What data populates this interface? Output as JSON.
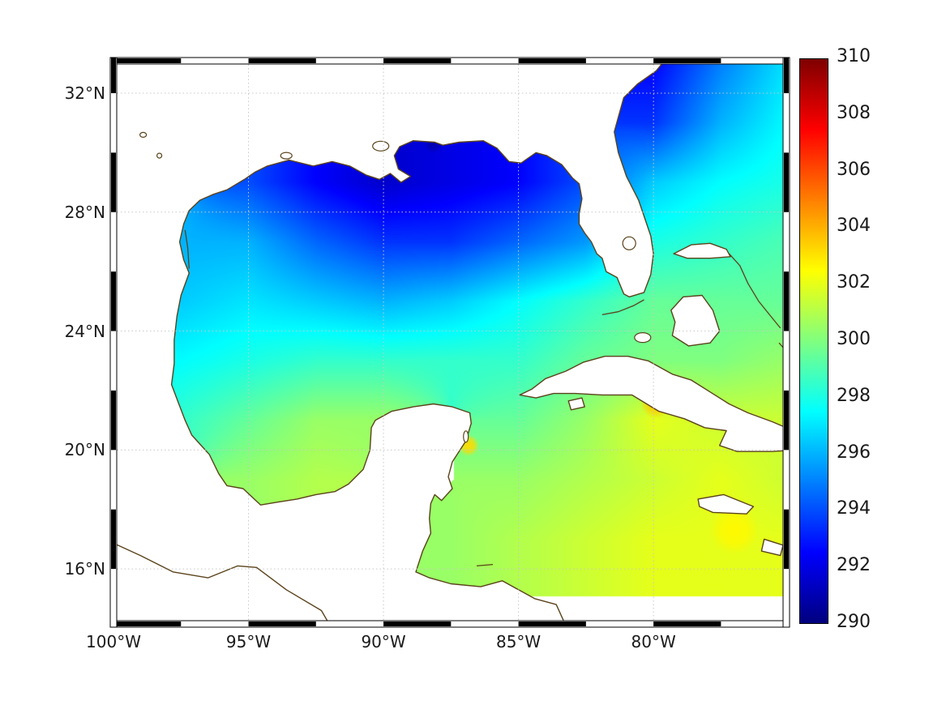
{
  "colors": {
    "coastline": "#5a421a",
    "gridline": "#c8c8c8",
    "tick_label": "#1a1a1a",
    "frame": "#000000",
    "background": "#ffffff"
  },
  "colorbar_style": {
    "stops": [
      {
        "t": 0.0,
        "c": "#00007f"
      },
      {
        "t": 0.125,
        "c": "#0000ff"
      },
      {
        "t": 0.375,
        "c": "#00ffff"
      },
      {
        "t": 0.625,
        "c": "#ffff00"
      },
      {
        "t": 0.875,
        "c": "#ff0000"
      },
      {
        "t": 1.0,
        "c": "#7f0000"
      }
    ]
  },
  "chart_data": {
    "type": "heatmap",
    "title": "",
    "description": "Sea surface temperature style map of the Gulf of Mexico and northwest Caribbean with jet colormap and zebra map frame",
    "lon_range": [
      -100,
      -75.08
    ],
    "lat_range": [
      14.15,
      33.09
    ],
    "x_axis": {
      "ticks": [
        {
          "lon": -100,
          "label": "100°W"
        },
        {
          "lon": -95,
          "label": "95°W"
        },
        {
          "lon": -90,
          "label": "90°W"
        },
        {
          "lon": -85,
          "label": "85°W"
        },
        {
          "lon": -80,
          "label": "80°W"
        }
      ]
    },
    "y_axis": {
      "ticks": [
        {
          "lat": 32,
          "label": "32°N"
        },
        {
          "lat": 28,
          "label": "28°N"
        },
        {
          "lat": 24,
          "label": "24°N"
        },
        {
          "lat": 20,
          "label": "20°N"
        },
        {
          "lat": 16,
          "label": "16°N"
        }
      ]
    },
    "colorbar": {
      "min": 290,
      "max": 310,
      "tick_step": 2,
      "tick_labels": [
        "290",
        "292",
        "294",
        "296",
        "298",
        "300",
        "302",
        "304",
        "306",
        "308",
        "310"
      ],
      "colormap": "jet",
      "position": "right"
    },
    "grid": {
      "lon_nodes": [
        -100,
        -97.5,
        -95,
        -92.5,
        -90,
        -87.5,
        -85,
        -82.5,
        -80,
        -77.5,
        -75
      ],
      "lat_nodes": [
        33,
        31,
        29,
        27,
        25,
        23,
        21,
        19,
        17,
        15
      ],
      "values": [
        [
          null,
          null,
          null,
          null,
          null,
          null,
          null,
          null,
          292.5,
          295,
          297
        ],
        [
          null,
          null,
          null,
          null,
          null,
          null,
          null,
          null,
          293.5,
          296,
          297.5
        ],
        [
          null,
          null,
          294,
          292.5,
          291.5,
          292,
          292.5,
          294,
          296.5,
          297.5,
          298
        ],
        [
          null,
          296,
          296,
          294.5,
          293.5,
          293.5,
          294.5,
          295.5,
          298,
          298.5,
          299
        ],
        [
          null,
          296.5,
          297,
          296.5,
          296,
          296.5,
          297.5,
          298.5,
          299.5,
          299.5,
          299.5
        ],
        [
          null,
          297.5,
          298,
          298.5,
          298.5,
          298.5,
          298.5,
          299.5,
          300,
          300,
          300.5
        ],
        [
          null,
          298.5,
          299.5,
          300.5,
          300.5,
          null,
          299.5,
          300.5,
          302,
          301.5,
          301.5
        ],
        [
          null,
          null,
          300.5,
          301,
          null,
          null,
          300.5,
          301,
          301.5,
          302,
          301.5
        ],
        [
          null,
          null,
          null,
          null,
          null,
          300.5,
          301,
          301.5,
          302,
          302,
          302
        ],
        [
          null,
          null,
          null,
          null,
          null,
          null,
          null,
          null,
          null,
          null,
          null
        ]
      ]
    },
    "hotspots": [
      {
        "lon": -88.15,
        "lat": 30.3,
        "value": 291,
        "radius_deg": 0.35
      },
      {
        "lon": -86.85,
        "lat": 20.15,
        "value": 303.2,
        "radius_deg": 0.4
      },
      {
        "lon": -79.9,
        "lat": 21.6,
        "value": 303.5,
        "radius_deg": 0.6
      },
      {
        "lon": -77.0,
        "lat": 17.3,
        "value": 302.6,
        "radius_deg": 0.9
      }
    ],
    "swath_edge": [
      [
        -88.5,
        17.25
      ],
      [
        -84,
        16.95
      ],
      [
        -79,
        16.6
      ],
      [
        -74.5,
        16.35
      ]
    ],
    "gridlines": {
      "style": "dotted",
      "lons": [
        -95,
        -90,
        -85,
        -80
      ],
      "lats": [
        16,
        20,
        24,
        28,
        32
      ]
    }
  }
}
